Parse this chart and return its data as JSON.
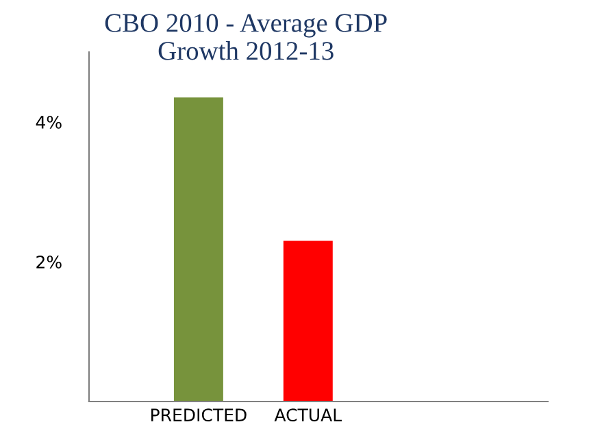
{
  "chart_data": {
    "type": "bar",
    "title": "CBO 2010 - Average GDP\nGrowth 2012-13",
    "categories": [
      "PREDICTED",
      "ACTUAL"
    ],
    "values": [
      4.35,
      2.3
    ],
    "colors": [
      "#77933c",
      "#ff0000"
    ],
    "ylim": [
      0,
      5
    ],
    "yticks": [
      {
        "value": 2,
        "label": "2%"
      },
      {
        "value": 4,
        "label": "4%"
      }
    ],
    "grid": false,
    "legend": false
  }
}
